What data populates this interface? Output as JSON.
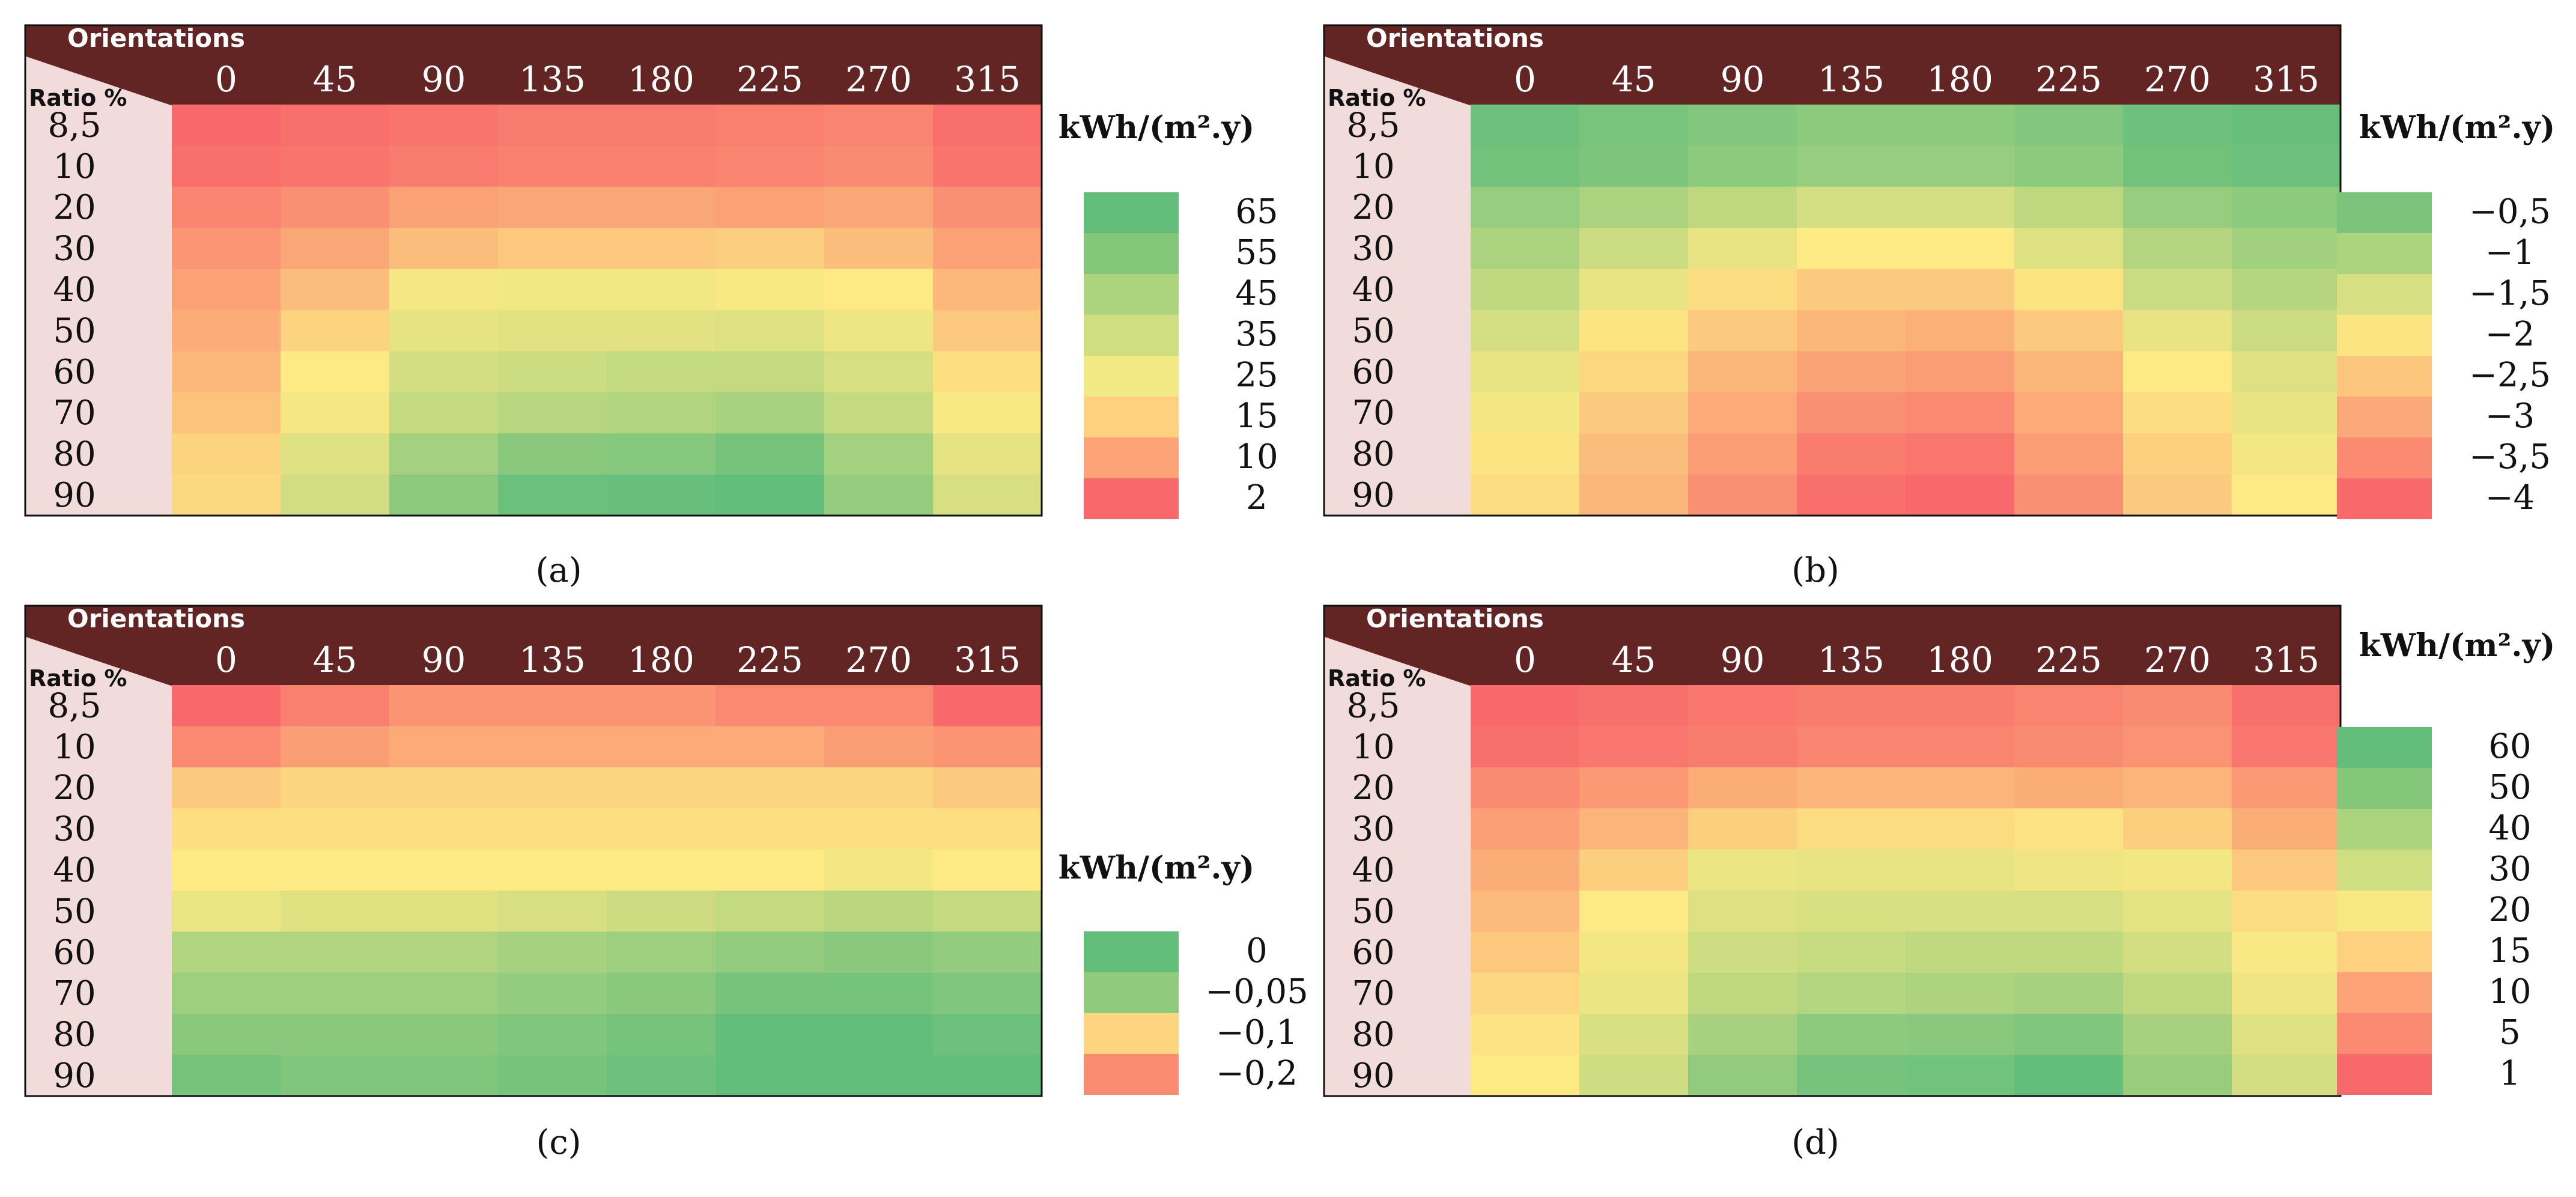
{
  "chart_data": [
    {
      "type": "heatmap",
      "caption": "(a)",
      "corner_top": "Orientations",
      "corner_bottom": "Ratio %",
      "columns": [
        "0",
        "45",
        "90",
        "135",
        "180",
        "225",
        "270",
        "315"
      ],
      "rows": [
        "8,5",
        "10",
        "20",
        "30",
        "40",
        "50",
        "60",
        "70",
        "80",
        "90"
      ],
      "unit": "kWh/(m².y)",
      "legend": [
        {
          "label": "65",
          "color": "#63be7b"
        },
        {
          "label": "55",
          "color": "#84c77b"
        },
        {
          "label": "45",
          "color": "#acd47e"
        },
        {
          "label": "35",
          "color": "#d0de82"
        },
        {
          "label": "25",
          "color": "#f2e884"
        },
        {
          "label": "15",
          "color": "#fdd17f"
        },
        {
          "label": "10",
          "color": "#fca478"
        },
        {
          "label": "2",
          "color": "#f8696b"
        }
      ],
      "values": [
        [
          2,
          3,
          4,
          5,
          5,
          6,
          7,
          3
        ],
        [
          3,
          4,
          5,
          6,
          6,
          7,
          8,
          4
        ],
        [
          7,
          9,
          12,
          13,
          13,
          12,
          13,
          9
        ],
        [
          10,
          13,
          17,
          19,
          19,
          20,
          17,
          12
        ],
        [
          12,
          17,
          27,
          28,
          28,
          26,
          25,
          16
        ],
        [
          14,
          21,
          31,
          32,
          32,
          33,
          29,
          19
        ],
        [
          16,
          25,
          36,
          38,
          40,
          40,
          35,
          23
        ],
        [
          18,
          27,
          40,
          43,
          45,
          47,
          40,
          26
        ],
        [
          21,
          33,
          48,
          55,
          56,
          60,
          48,
          31
        ],
        [
          22,
          36,
          54,
          63,
          64,
          68,
          52,
          35
        ]
      ],
      "scale": {
        "min": 2,
        "mid": 25,
        "max": 65
      }
    },
    {
      "type": "heatmap",
      "caption": "(b)",
      "corner_top": "Orientations",
      "corner_bottom": "Ratio %",
      "columns": [
        "0",
        "45",
        "90",
        "135",
        "180",
        "225",
        "270",
        "315"
      ],
      "rows": [
        "8,5",
        "10",
        "20",
        "30",
        "40",
        "50",
        "60",
        "70",
        "80",
        "90"
      ],
      "unit": "kWh/(m².y)",
      "legend": [
        {
          "label": "−0,5",
          "color": "#7cc47c"
        },
        {
          "label": "−1",
          "color": "#acd47e"
        },
        {
          "label": "−1,5",
          "color": "#d6e082"
        },
        {
          "label": "−2",
          "color": "#fbe583"
        },
        {
          "label": "−2,5",
          "color": "#fdc67d"
        },
        {
          "label": "−3",
          "color": "#fca97a"
        },
        {
          "label": "−3,5",
          "color": "#fa8a72"
        },
        {
          "label": "−4",
          "color": "#f8696b"
        }
      ],
      "values": [
        [
          -0.6,
          -0.7,
          -0.8,
          -0.9,
          -0.9,
          -0.8,
          -0.6,
          -0.55
        ],
        [
          -0.65,
          -0.75,
          -0.9,
          -1.0,
          -1.0,
          -0.9,
          -0.65,
          -0.6
        ],
        [
          -1.0,
          -1.2,
          -1.4,
          -1.6,
          -1.6,
          -1.4,
          -1.0,
          -0.9
        ],
        [
          -1.2,
          -1.5,
          -1.8,
          -2.0,
          -2.0,
          -1.7,
          -1.3,
          -1.1
        ],
        [
          -1.4,
          -1.8,
          -2.2,
          -2.5,
          -2.5,
          -2.1,
          -1.5,
          -1.3
        ],
        [
          -1.6,
          -2.1,
          -2.5,
          -2.8,
          -2.9,
          -2.5,
          -1.8,
          -1.5
        ],
        [
          -1.8,
          -2.3,
          -2.8,
          -3.1,
          -3.2,
          -2.8,
          -2.0,
          -1.7
        ],
        [
          -1.9,
          -2.5,
          -3.0,
          -3.4,
          -3.5,
          -3.0,
          -2.2,
          -1.8
        ],
        [
          -2.1,
          -2.7,
          -3.2,
          -3.7,
          -3.8,
          -3.2,
          -2.4,
          -1.9
        ],
        [
          -2.2,
          -2.8,
          -3.4,
          -3.9,
          -4.0,
          -3.4,
          -2.5,
          -2.0
        ]
      ],
      "scale": {
        "min": -4,
        "mid": -2,
        "max": -0.5
      }
    },
    {
      "type": "heatmap",
      "caption": "(c)",
      "corner_top": "Orientations",
      "corner_bottom": "Ratio %",
      "columns": [
        "0",
        "45",
        "90",
        "135",
        "180",
        "225",
        "270",
        "315"
      ],
      "rows": [
        "8,5",
        "10",
        "20",
        "30",
        "40",
        "50",
        "60",
        "70",
        "80",
        "90"
      ],
      "unit": "kWh/(m².y)",
      "legend": [
        {
          "label": "0",
          "color": "#63be7b"
        },
        {
          "label": "−0,05",
          "color": "#8fca7d"
        },
        {
          "label": "−0,1",
          "color": "#fdd47f"
        },
        {
          "label": "−0,2",
          "color": "#fa8c72"
        }
      ],
      "values": [
        [
          -0.2,
          -0.18,
          -0.16,
          -0.16,
          -0.16,
          -0.17,
          -0.17,
          -0.2
        ],
        [
          -0.17,
          -0.15,
          -0.14,
          -0.14,
          -0.14,
          -0.14,
          -0.15,
          -0.16
        ],
        [
          -0.11,
          -0.1,
          -0.1,
          -0.1,
          -0.1,
          -0.1,
          -0.1,
          -0.11
        ],
        [
          -0.09,
          -0.09,
          -0.09,
          -0.09,
          -0.09,
          -0.09,
          -0.09,
          -0.09
        ],
        [
          -0.08,
          -0.08,
          -0.08,
          -0.08,
          -0.08,
          -0.08,
          -0.075,
          -0.08
        ],
        [
          -0.07,
          -0.065,
          -0.065,
          -0.06,
          -0.055,
          -0.05,
          -0.045,
          -0.05
        ],
        [
          -0.04,
          -0.04,
          -0.04,
          -0.035,
          -0.03,
          -0.025,
          -0.02,
          -0.025
        ],
        [
          -0.03,
          -0.03,
          -0.03,
          -0.025,
          -0.02,
          -0.01,
          -0.01,
          -0.015
        ],
        [
          -0.02,
          -0.02,
          -0.02,
          -0.015,
          -0.01,
          0,
          0,
          -0.005
        ],
        [
          -0.01,
          -0.015,
          -0.015,
          -0.01,
          -0.005,
          0,
          0,
          0
        ]
      ],
      "scale": {
        "min": -0.2,
        "mid": -0.08,
        "max": 0
      }
    },
    {
      "type": "heatmap",
      "caption": "(d)",
      "corner_top": "Orientations",
      "corner_bottom": "Ratio %",
      "columns": [
        "0",
        "45",
        "90",
        "135",
        "180",
        "225",
        "270",
        "315"
      ],
      "rows": [
        "8,5",
        "10",
        "20",
        "30",
        "40",
        "50",
        "60",
        "70",
        "80",
        "90"
      ],
      "unit": "kWh/(m².y)",
      "legend": [
        {
          "label": "60",
          "color": "#63be7b"
        },
        {
          "label": "50",
          "color": "#84c77b"
        },
        {
          "label": "40",
          "color": "#acd47e"
        },
        {
          "label": "30",
          "color": "#d0de82"
        },
        {
          "label": "20",
          "color": "#f7e884"
        },
        {
          "label": "15",
          "color": "#fdd17f"
        },
        {
          "label": "10",
          "color": "#fca478"
        },
        {
          "label": "5",
          "color": "#fa8a72"
        },
        {
          "label": "1",
          "color": "#f8696b"
        }
      ],
      "values": [
        [
          1,
          2,
          3,
          4,
          4,
          5,
          6,
          2
        ],
        [
          2,
          3,
          4,
          5,
          5,
          6,
          7,
          3
        ],
        [
          6,
          8,
          11,
          12,
          12,
          11,
          12,
          8
        ],
        [
          9,
          12,
          16,
          18,
          18,
          19,
          16,
          11
        ],
        [
          11,
          16,
          25,
          26,
          26,
          24,
          23,
          15
        ],
        [
          13,
          20,
          29,
          30,
          30,
          31,
          27,
          18
        ],
        [
          15,
          23,
          33,
          35,
          37,
          37,
          32,
          21
        ],
        [
          17,
          25,
          37,
          40,
          42,
          44,
          37,
          24
        ],
        [
          19,
          30,
          44,
          51,
          52,
          55,
          44,
          29
        ],
        [
          20,
          33,
          50,
          58,
          59,
          63,
          48,
          32
        ]
      ],
      "scale": {
        "min": 1,
        "mid": 20,
        "max": 63
      }
    }
  ]
}
